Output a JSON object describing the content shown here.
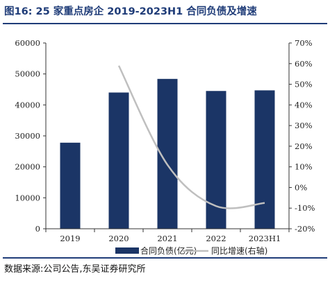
{
  "title": "图16:  25 家重点房企 2019-2023H1 合同负债及增速",
  "source": "数据来源:公司公告,东吴证券研究所",
  "colors": {
    "bar": "#1b3566",
    "line": "#bfbfbf",
    "title": "#1f3c78"
  },
  "chart_data": {
    "type": "bar",
    "categories": [
      "2019",
      "2020",
      "2021",
      "2022",
      "2023H1"
    ],
    "series": [
      {
        "name": "合同负债(亿元)",
        "type": "bar",
        "axis": "left",
        "values": [
          27800,
          44000,
          48400,
          44500,
          44700
        ]
      },
      {
        "name": "同比增速(右轴)",
        "type": "line",
        "axis": "right",
        "unit": "%",
        "values": [
          null,
          59,
          11,
          -9,
          -7.5
        ]
      }
    ],
    "left_axis": {
      "ylim": [
        0,
        60000
      ],
      "ticks": [
        "0",
        "10000",
        "20000",
        "30000",
        "40000",
        "50000",
        "60000"
      ]
    },
    "right_axis": {
      "ylim": [
        -20,
        70
      ],
      "ticks": [
        "-20%",
        "-10%",
        "0%",
        "10%",
        "20%",
        "30%",
        "40%",
        "50%",
        "60%",
        "70%"
      ]
    },
    "legend": "bottom",
    "grid": false
  }
}
